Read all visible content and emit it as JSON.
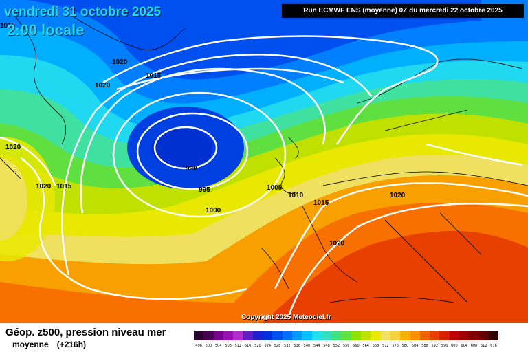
{
  "header": {
    "date": "vendredi 31 octobre 2025",
    "time": "2:00 locale",
    "run": "Run ECMWF ENS (moyenne) 0Z du mercredi 22 octobre 2025"
  },
  "copyright": "Copyright 2025 Meteociel.fr",
  "footer": {
    "title": "Géop. z500, pression niveau mer",
    "subtitle": "moyenne",
    "range": "(+216h)"
  },
  "pressure_labels": [
    "1020",
    "1015",
    "1020",
    "1020",
    "1020",
    "1015",
    "990",
    "995",
    "1000",
    "1005",
    "1010",
    "1015",
    "1020",
    "1020",
    "1015"
  ],
  "legend": {
    "ticks": [
      "496",
      "500",
      "504",
      "508",
      "512",
      "516",
      "520",
      "524",
      "528",
      "532",
      "536",
      "540",
      "544",
      "548",
      "552",
      "556",
      "560",
      "564",
      "568",
      "572",
      "576",
      "580",
      "584",
      "588",
      "592",
      "596",
      "600",
      "604",
      "608",
      "612",
      "616"
    ],
    "colors": [
      "#2a0030",
      "#4a0050",
      "#7a0090",
      "#9a10b0",
      "#b030c8",
      "#6020c0",
      "#2020d0",
      "#0030e0",
      "#0050f0",
      "#0070ff",
      "#0098ff",
      "#00c0ff",
      "#20e0f0",
      "#30e0c0",
      "#40e080",
      "#60e040",
      "#90e000",
      "#c0e000",
      "#e8e800",
      "#f0e060",
      "#f8d040",
      "#f8b000",
      "#f89000",
      "#f06000",
      "#e84000",
      "#d82000",
      "#c00000",
      "#a00000",
      "#800000",
      "#600000",
      "#300000"
    ]
  }
}
